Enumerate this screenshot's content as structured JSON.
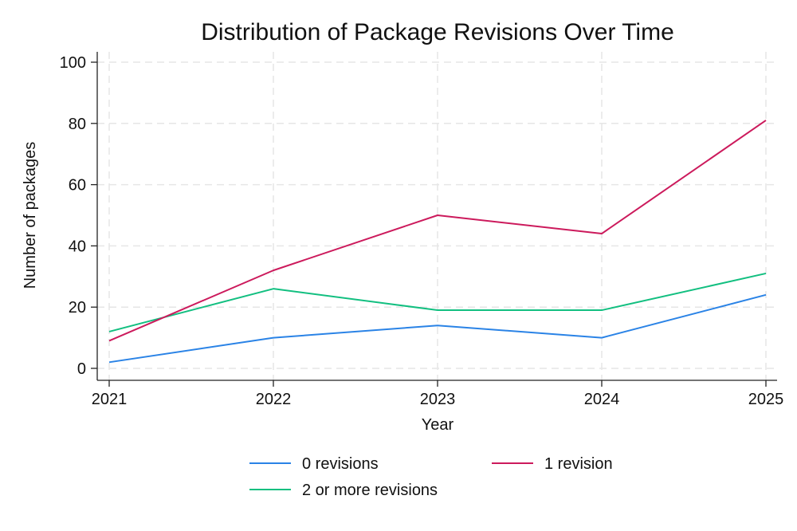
{
  "chart_data": {
    "type": "line",
    "title": "Distribution of Package Revisions Over Time",
    "xlabel": "Year",
    "ylabel": "Number of packages",
    "x": [
      2021,
      2022,
      2023,
      2024,
      2025
    ],
    "xlim": [
      2021,
      2025
    ],
    "ylim": [
      0,
      100
    ],
    "yticks": [
      0,
      20,
      40,
      60,
      80,
      100
    ],
    "grid": true,
    "legend_position": "bottom",
    "series": [
      {
        "name": "0 revisions",
        "color": "#2a83e6",
        "values": [
          2,
          10,
          14,
          10,
          24
        ]
      },
      {
        "name": "1 revision",
        "color": "#cc1a5c",
        "values": [
          9,
          32,
          50,
          44,
          81
        ]
      },
      {
        "name": "2 or more revisions",
        "color": "#12bf80",
        "values": [
          12,
          26,
          19,
          19,
          31
        ]
      }
    ]
  }
}
